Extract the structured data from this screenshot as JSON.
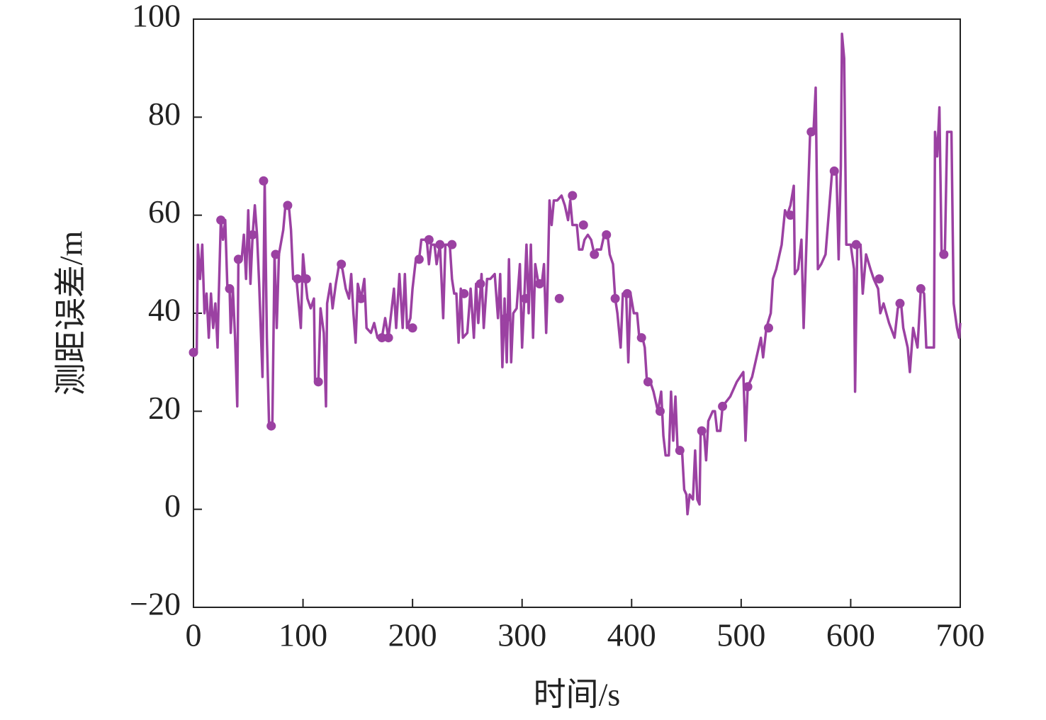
{
  "chart_data": {
    "type": "line",
    "xlabel": "时间/s",
    "ylabel": "测距误差/m",
    "xlim": [
      0,
      700
    ],
    "xticks": [
      0,
      100,
      200,
      300,
      400,
      500,
      600,
      700
    ],
    "ylim": [
      -20,
      100
    ],
    "yticks": [
      {
        "value": -20,
        "label": "−20"
      },
      0,
      20,
      40,
      60,
      80,
      100
    ],
    "grid": false,
    "series": [
      {
        "color": "#9b41a2",
        "marker": false,
        "x": [
          0,
          3,
          4,
          6,
          8,
          10,
          12,
          14,
          16,
          18,
          20,
          22,
          23,
          25,
          27,
          29,
          31,
          33,
          34,
          36,
          38,
          40,
          41,
          44,
          46,
          48,
          50,
          52,
          54,
          56,
          58,
          60,
          63,
          65,
          67,
          69,
          72,
          74,
          76,
          78,
          82,
          84,
          87,
          89,
          91,
          94,
          96,
          98,
          100,
          102,
          104,
          107,
          110,
          111,
          114,
          116,
          119,
          121,
          122,
          125,
          127,
          130,
          133,
          136,
          139,
          142,
          144,
          146,
          148,
          150,
          153,
          156,
          158,
          162,
          165,
          168,
          172,
          175,
          178,
          180,
          183,
          185,
          188,
          191,
          193,
          195,
          198,
          200,
          203,
          206,
          208,
          213,
          215,
          217,
          220,
          222,
          225,
          228,
          230,
          234,
          236,
          238,
          240,
          242,
          244,
          246,
          250,
          253,
          256,
          258,
          260,
          263,
          265,
          268,
          271,
          275,
          278,
          280,
          282,
          284,
          286,
          288,
          290,
          292,
          295,
          298,
          300,
          302,
          304,
          306,
          308,
          310,
          312,
          315,
          318,
          320,
          322,
          323,
          325,
          327,
          329,
          332,
          336,
          339,
          342,
          344,
          346,
          350,
          352,
          355,
          357,
          360,
          363,
          366,
          368,
          372,
          375,
          378,
          380,
          383,
          385,
          387,
          390,
          392,
          395,
          397,
          399,
          402,
          405,
          407,
          410,
          412,
          414,
          417,
          420,
          424,
          427,
          429,
          431,
          434,
          436,
          438,
          440,
          442,
          446,
          448,
          450,
          451,
          453,
          456,
          458,
          460,
          462,
          463,
          466,
          468,
          470,
          474,
          476,
          478,
          481,
          483,
          490,
          496,
          502,
          504,
          506,
          510,
          514,
          518,
          520,
          523,
          527,
          529,
          532,
          537,
          540,
          542,
          545,
          548,
          549,
          552,
          555,
          557,
          563,
          566,
          568,
          570,
          573,
          577,
          583,
          587,
          589,
          591,
          592,
          594,
          596,
          600,
          603,
          604,
          606,
          609,
          611,
          614,
          618,
          621,
          625,
          627,
          630,
          635,
          640,
          643,
          646,
          648,
          652,
          654,
          657,
          661,
          664,
          667,
          669,
          676,
          677,
          679,
          681,
          683,
          686,
          688,
          692,
          694,
          697,
          699,
          700
        ],
        "values": [
          32,
          32,
          54,
          47,
          54,
          40,
          44,
          35,
          44,
          37,
          42,
          33,
          43,
          59,
          55,
          59,
          45,
          45,
          36,
          45,
          35,
          21,
          51,
          51,
          56,
          47,
          61,
          46,
          56,
          62,
          56,
          46,
          27,
          67,
          35,
          17,
          17,
          52,
          37,
          52,
          57,
          62,
          62,
          57,
          47,
          47,
          42,
          37,
          52,
          47,
          43,
          41,
          43,
          26,
          26,
          41,
          36,
          21,
          42,
          46,
          41,
          46,
          50,
          49,
          45,
          43,
          48,
          40,
          34,
          46,
          43,
          47,
          37,
          36,
          38,
          35,
          35,
          39,
          35,
          39,
          45,
          37,
          48,
          37,
          48,
          37,
          39,
          45,
          51,
          51,
          55,
          55,
          50,
          54,
          54,
          50,
          54,
          39,
          54,
          54,
          47,
          44,
          44,
          34,
          45,
          35,
          36,
          45,
          35,
          46,
          38,
          48,
          37,
          47,
          47,
          48,
          39,
          48,
          29,
          43,
          30,
          51,
          30,
          40,
          41,
          50,
          33,
          43,
          54,
          40,
          54,
          35,
          50,
          46,
          46,
          50,
          36,
          43,
          63,
          58,
          63,
          63,
          64,
          62,
          59,
          63,
          58,
          58,
          53,
          53,
          55,
          56,
          55,
          52,
          53,
          53,
          56,
          56,
          52,
          50,
          43,
          40,
          33,
          44,
          44,
          30,
          44,
          40,
          40,
          35,
          35,
          33,
          26,
          26,
          24,
          20,
          24,
          15,
          11,
          11,
          24,
          14,
          23,
          12,
          12,
          4,
          3,
          -1,
          3,
          2,
          12,
          2,
          1,
          16,
          16,
          10,
          18,
          20,
          20,
          16,
          16,
          21,
          23,
          26,
          28,
          14,
          25,
          27,
          31,
          35,
          31,
          37,
          40,
          47,
          49,
          54,
          61,
          60,
          62,
          66,
          48,
          49,
          55,
          37,
          77,
          77,
          86,
          49,
          50,
          52,
          69,
          69,
          51,
          70,
          97,
          92,
          54,
          54,
          49,
          24,
          54,
          54,
          44,
          52,
          49,
          47,
          45,
          40,
          42,
          38,
          35,
          41,
          42,
          37,
          33,
          28,
          37,
          33,
          45,
          44,
          33,
          33,
          77,
          72,
          82,
          52,
          53,
          77,
          77,
          42,
          37,
          35,
          38
        ]
      },
      {
        "color": "#9b41a2",
        "marker": true,
        "x": [
          0,
          25,
          33,
          41,
          54,
          64,
          71,
          75,
          86,
          95,
          103,
          114,
          135,
          153,
          172,
          178,
          200,
          206,
          215,
          225,
          236,
          247,
          262,
          285,
          303,
          316,
          334,
          346,
          356,
          366,
          377,
          385,
          396,
          409,
          415,
          426,
          444,
          464,
          483,
          506,
          525,
          545,
          564,
          585,
          605,
          626,
          645,
          664,
          685
        ],
        "values": [
          32,
          59,
          45,
          51,
          56,
          67,
          17,
          52,
          62,
          47,
          47,
          26,
          50,
          43,
          35,
          35,
          37,
          51,
          55,
          54,
          54,
          44,
          46,
          39,
          43,
          46,
          43,
          64,
          58,
          52,
          56,
          43,
          44,
          35,
          26,
          20,
          12,
          16,
          21,
          25,
          37,
          60,
          77,
          69,
          54,
          47,
          42,
          45,
          52
        ]
      }
    ]
  }
}
